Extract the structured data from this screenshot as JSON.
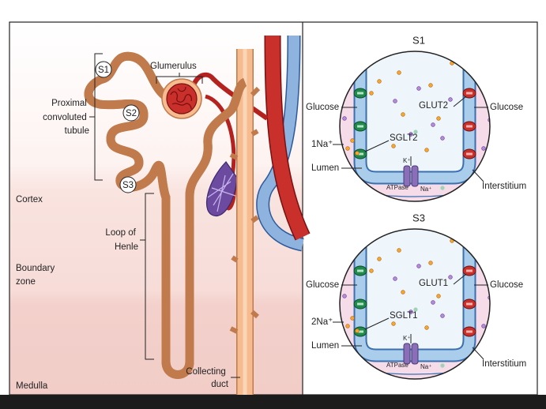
{
  "left": {
    "segments": [
      "S1",
      "S2",
      "S3"
    ],
    "glomerulus": "Glumerulus",
    "proximal": [
      "Proximal",
      "convoluted",
      "tubule"
    ],
    "cortex": "Cortex",
    "loop": [
      "Loop of",
      "Henle"
    ],
    "boundary": [
      "Boundary",
      "zone"
    ],
    "collecting": [
      "Collecting",
      "duct"
    ],
    "medulla": "Medulla"
  },
  "panels": [
    {
      "title": "S1",
      "glucose_lumen": "Glucose",
      "basal_transporter": "GLUT2",
      "glucose_interstitium": "Glucose",
      "sodium": "1Na⁺",
      "apical_transporter": "SGLT2",
      "lumen": "Lumen",
      "potassium": "K⁺",
      "pump": "ATPase",
      "pump_sodium": "Na⁺",
      "interstitium": "Interstitium"
    },
    {
      "title": "S3",
      "glucose_lumen": "Glucose",
      "basal_transporter": "GLUT1",
      "glucose_interstitium": "Glucose",
      "sodium": "2Na⁺",
      "apical_transporter": "SGLT1",
      "lumen": "Lumen",
      "potassium": "K⁺",
      "pump": "ATPase",
      "pump_sodium": "Na⁺",
      "interstitium": "Interstitium"
    }
  ]
}
